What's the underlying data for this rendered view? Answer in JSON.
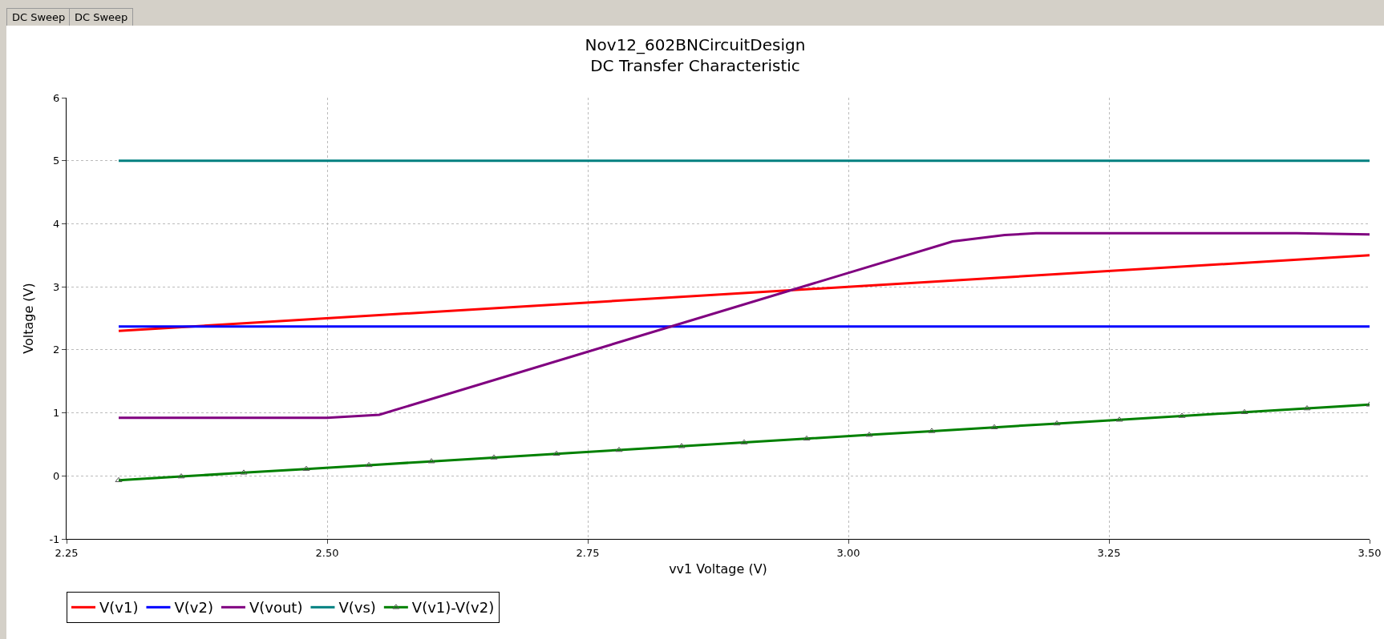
{
  "chart_data": {
    "type": "line",
    "title": "Nov12_602BNCircuitDesign",
    "subtitle": "DC Transfer Characteristic",
    "xlabel": "vv1 Voltage (V)",
    "ylabel": "Voltage (V)",
    "annotations": [
      "DC Sweep",
      "DC Sweep"
    ],
    "xlim": [
      2.25,
      3.5
    ],
    "xticks": [
      {
        "value": 2.25,
        "label": "2.25"
      },
      {
        "value": 2.5,
        "label": "2.50"
      },
      {
        "value": 2.75,
        "label": "2.75"
      },
      {
        "value": 3,
        "label": "3.00"
      },
      {
        "value": 3.25,
        "label": "3.25"
      },
      {
        "value": 3.5,
        "label": "3.50"
      }
    ],
    "ylim": [
      -1,
      6
    ],
    "yticks": [
      -1,
      0,
      1,
      2,
      3,
      4,
      5,
      6
    ],
    "grid": true,
    "legend": "bottom",
    "line_style": "solid",
    "series": [
      {
        "name": "V(v1)",
        "color": "#ff0000",
        "x": [
          2.3,
          3.5
        ],
        "values": [
          2.3,
          3.5
        ]
      },
      {
        "name": "V(v2)",
        "color": "#0000ff",
        "x": [
          2.3,
          3.5
        ],
        "values": [
          2.37,
          2.37
        ]
      },
      {
        "name": "V(vout)",
        "color": "#800080",
        "x": [
          2.3,
          2.5,
          2.55,
          3.1,
          3.15,
          3.18,
          3.43,
          3.5
        ],
        "values": [
          0.92,
          0.92,
          0.97,
          3.72,
          3.82,
          3.85,
          3.85,
          3.83
        ]
      },
      {
        "name": "V(vs)",
        "color": "#008080",
        "x": [
          2.3,
          3.5
        ],
        "values": [
          5,
          5
        ]
      },
      {
        "name": "V(v1)-V(v2)",
        "color": "#008000",
        "marker": "triangle",
        "x": [
          2.3,
          2.36,
          2.42,
          2.48,
          2.54,
          2.6,
          2.66,
          2.72,
          2.78,
          2.84,
          2.9,
          2.96,
          3.02,
          3.08,
          3.14,
          3.2,
          3.26,
          3.32,
          3.38,
          3.44,
          3.5
        ],
        "values": [
          -0.07,
          -0.01,
          0.05,
          0.11,
          0.17,
          0.23,
          0.29,
          0.35,
          0.41,
          0.47,
          0.53,
          0.59,
          0.65,
          0.71,
          0.77,
          0.83,
          0.89,
          0.95,
          1.01,
          1.07,
          1.13
        ]
      }
    ]
  }
}
